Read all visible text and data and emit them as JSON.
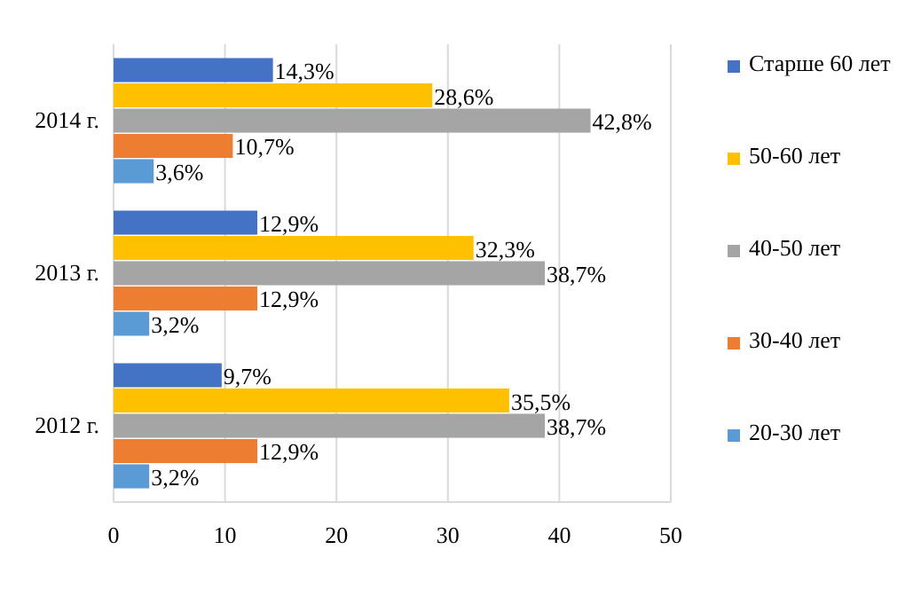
{
  "chart_data": {
    "type": "bar",
    "orientation": "horizontal",
    "categories": [
      "2014 г.",
      "2013 г.",
      "2012 г."
    ],
    "series": [
      {
        "name": "Старше 60 лет",
        "color": "#4472c4",
        "values": [
          14.3,
          12.9,
          9.7
        ],
        "value_labels": [
          "14,3%",
          "12,9%",
          "9,7%"
        ]
      },
      {
        "name": "50-60 лет",
        "color": "#ffc000",
        "values": [
          28.6,
          32.3,
          35.5
        ],
        "value_labels": [
          "28,6%",
          "32,3%",
          "35,5%"
        ]
      },
      {
        "name": "40-50 лет",
        "color": "#a5a5a5",
        "values": [
          42.8,
          38.7,
          38.7
        ],
        "value_labels": [
          "42,8%",
          "38,7%",
          "38,7%"
        ]
      },
      {
        "name": "30-40 лет",
        "color": "#ed7d31",
        "values": [
          10.7,
          12.9,
          12.9
        ],
        "value_labels": [
          "10,7%",
          "12,9%",
          "12,9%"
        ]
      },
      {
        "name": "20-30 лет",
        "color": "#5b9bd5",
        "values": [
          3.6,
          3.2,
          3.2
        ],
        "value_labels": [
          "3,6%",
          "3,2%",
          "3,2%"
        ]
      }
    ],
    "xlim": [
      0,
      50
    ],
    "xticks": [
      0,
      10,
      20,
      30,
      40,
      50
    ],
    "grid": "x",
    "legend": "right"
  }
}
